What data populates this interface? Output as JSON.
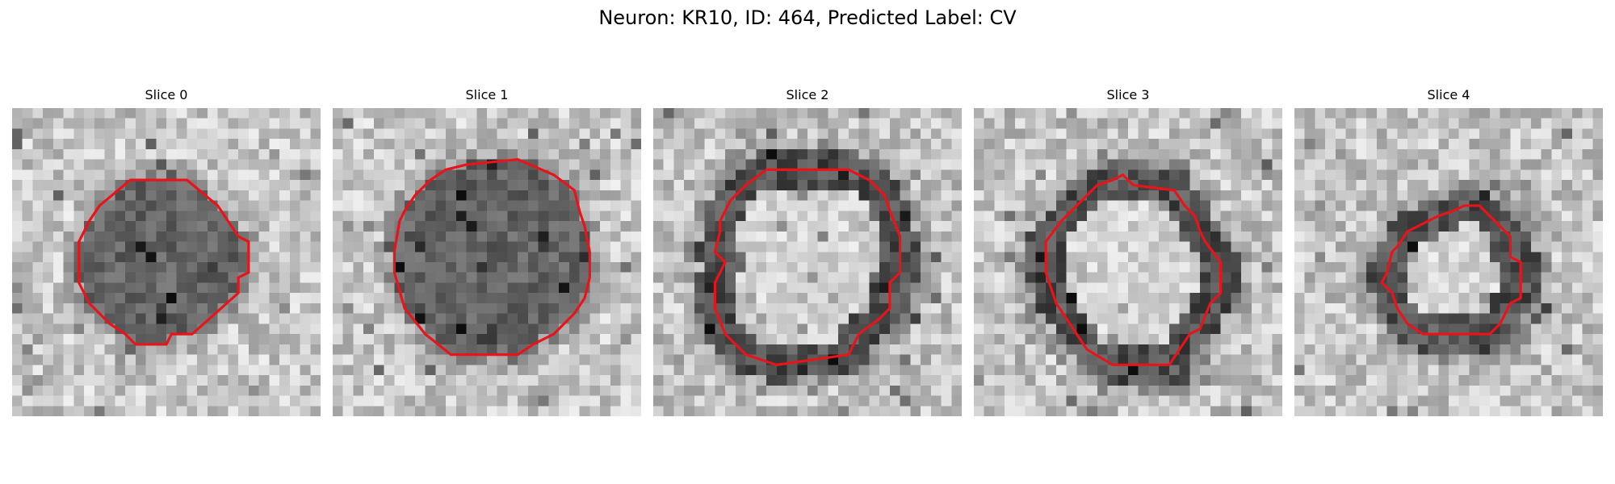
{
  "figure": {
    "title": "Neuron: KR10, ID: 464, Predicted Label: CV",
    "contour_color": "#e8141a",
    "panels": [
      {
        "title": "Slice 0",
        "vesicle": "dark",
        "seed": 11
      },
      {
        "title": "Slice 1",
        "vesicle": "dark",
        "seed": 23
      },
      {
        "title": "Slice 2",
        "vesicle": "light",
        "seed": 37
      },
      {
        "title": "Slice 3",
        "vesicle": "light",
        "seed": 41
      },
      {
        "title": "Slice 4",
        "vesicle": "light",
        "seed": 53
      }
    ]
  }
}
